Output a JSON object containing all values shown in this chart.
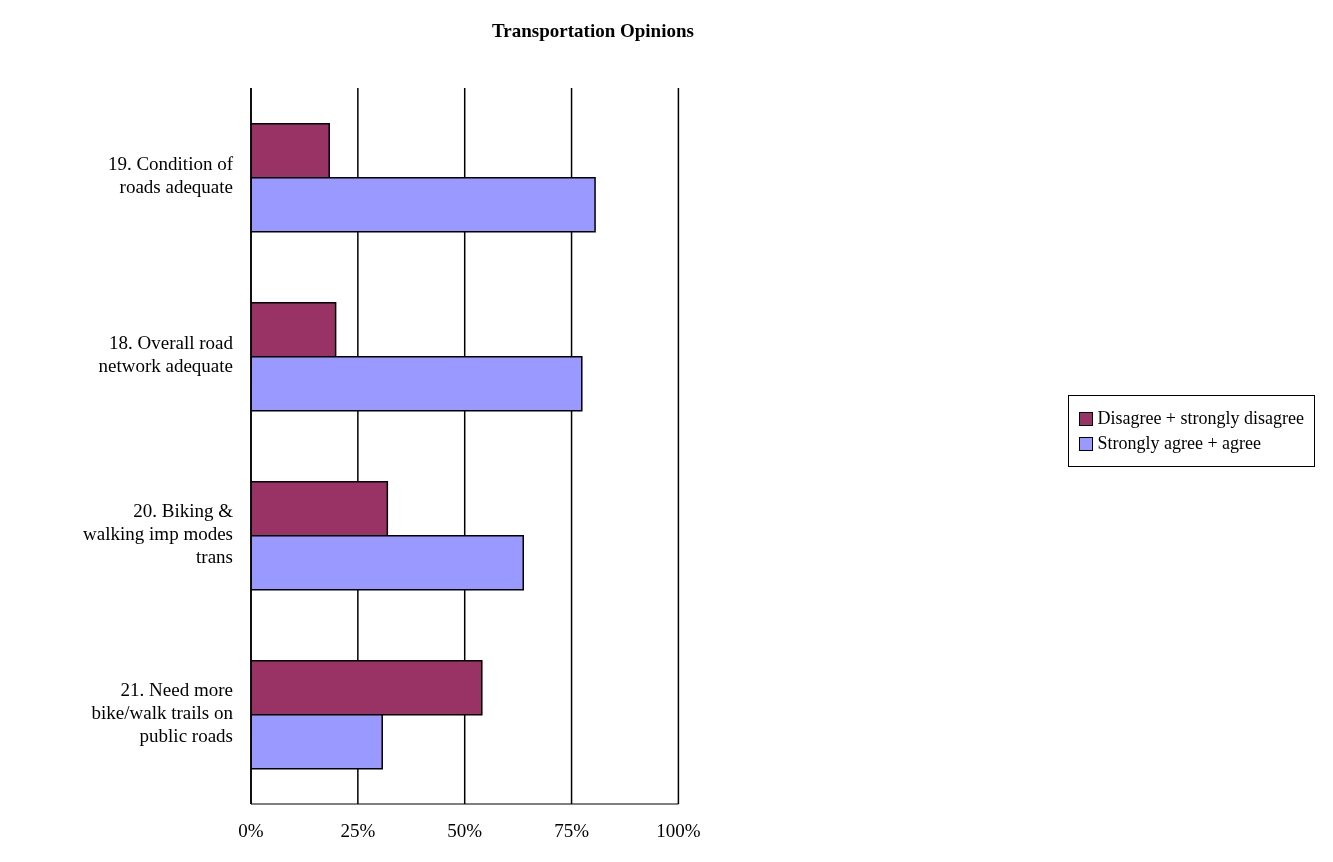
{
  "chart_data": {
    "type": "bar",
    "orientation": "horizontal",
    "title": "Transportation Opinions",
    "categories": [
      "19. Condition of roads adequate",
      "18. Overall road network adequate",
      "20. Biking & walking imp modes trans",
      "21. Need more bike/walk trails on public roads"
    ],
    "series": [
      {
        "name": "Disagree + strongly disagree",
        "color": "#993366",
        "values": [
          18.3,
          19.8,
          31.9,
          54.0
        ]
      },
      {
        "name": "Strongly agree + agree",
        "color": "#9999ff",
        "values": [
          80.5,
          77.4,
          63.7,
          30.7
        ]
      }
    ],
    "xlim": [
      0,
      100
    ],
    "xticks": [
      {
        "value": 0,
        "label": "0%"
      },
      {
        "value": 25,
        "label": "25%"
      },
      {
        "value": 50,
        "label": "50%"
      },
      {
        "value": 75,
        "label": "75%"
      },
      {
        "value": 100,
        "label": "100%"
      }
    ],
    "grid": "x",
    "legend": "right"
  }
}
